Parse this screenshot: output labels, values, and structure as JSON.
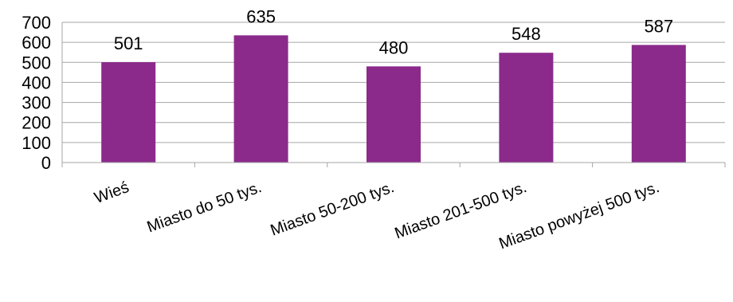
{
  "chart_data": {
    "type": "bar",
    "title": "",
    "xlabel": "",
    "ylabel": "",
    "categories": [
      "Wieś",
      "Miasto do 50 tys.",
      "Miasto 50-200 tys.",
      "Miasto 201-500 tys.",
      "Miasto powyżej 500 tys."
    ],
    "values": [
      501,
      635,
      480,
      548,
      587
    ],
    "data_labels": [
      "501",
      "635",
      "480",
      "548",
      "587"
    ],
    "ylim": [
      0,
      700
    ],
    "yticks": [
      0,
      100,
      200,
      300,
      400,
      500,
      600,
      700
    ],
    "grid": true,
    "legend": "none",
    "bar_color": "#8B2A8B",
    "grid_color": "#A6A6A6"
  }
}
